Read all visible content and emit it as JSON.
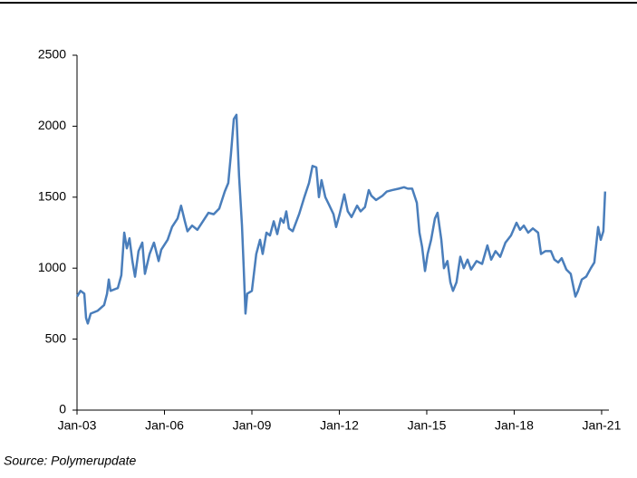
{
  "chart_data": {
    "type": "line",
    "source": "Source: Polymerupdate",
    "series": [
      {
        "name": null,
        "color": "#4a7ebb",
        "x": [
          2003.0,
          2003.12,
          2003.25,
          2003.31,
          2003.37,
          2003.47,
          2003.71,
          2003.93,
          2004.03,
          2004.09,
          2004.15,
          2004.4,
          2004.52,
          2004.62,
          2004.71,
          2004.8,
          2004.9,
          2004.99,
          2005.11,
          2005.24,
          2005.33,
          2005.49,
          2005.64,
          2005.8,
          2005.89,
          2006.11,
          2006.26,
          2006.45,
          2006.57,
          2006.7,
          2006.79,
          2006.95,
          2007.13,
          2007.32,
          2007.51,
          2007.69,
          2007.88,
          2008.07,
          2008.19,
          2008.28,
          2008.38,
          2008.47,
          2008.56,
          2008.66,
          2008.72,
          2008.78,
          2008.84,
          2009.0,
          2009.15,
          2009.28,
          2009.37,
          2009.5,
          2009.62,
          2009.75,
          2009.87,
          2009.99,
          2010.09,
          2010.18,
          2010.27,
          2010.4,
          2010.62,
          2010.8,
          2010.96,
          2011.08,
          2011.21,
          2011.3,
          2011.39,
          2011.52,
          2011.64,
          2011.8,
          2011.89,
          2012.01,
          2012.17,
          2012.29,
          2012.42,
          2012.61,
          2012.73,
          2012.88,
          2013.01,
          2013.1,
          2013.26,
          2013.48,
          2013.63,
          2013.82,
          2014.04,
          2014.22,
          2014.35,
          2014.5,
          2014.66,
          2014.75,
          2014.84,
          2014.94,
          2015.03,
          2015.15,
          2015.28,
          2015.37,
          2015.5,
          2015.59,
          2015.71,
          2015.81,
          2015.9,
          2016.02,
          2016.15,
          2016.27,
          2016.4,
          2016.52,
          2016.71,
          2016.9,
          2017.08,
          2017.21,
          2017.36,
          2017.52,
          2017.7,
          2017.89,
          2018.08,
          2018.2,
          2018.33,
          2018.48,
          2018.64,
          2018.82,
          2018.92,
          2019.07,
          2019.26,
          2019.38,
          2019.51,
          2019.63,
          2019.79,
          2019.94,
          2020.1,
          2020.19,
          2020.32,
          2020.47,
          2020.63,
          2020.75,
          2020.88,
          2020.97,
          2021.06,
          2021.12
        ],
        "values": [
          800,
          840,
          820,
          650,
          610,
          680,
          700,
          740,
          820,
          920,
          840,
          860,
          950,
          1250,
          1140,
          1210,
          1050,
          940,
          1120,
          1180,
          960,
          1100,
          1180,
          1050,
          1130,
          1200,
          1290,
          1350,
          1440,
          1330,
          1260,
          1300,
          1270,
          1330,
          1390,
          1380,
          1420,
          1540,
          1600,
          1800,
          2050,
          2080,
          1650,
          1300,
          1000,
          680,
          820,
          840,
          1100,
          1200,
          1100,
          1250,
          1230,
          1330,
          1240,
          1350,
          1320,
          1400,
          1280,
          1260,
          1380,
          1500,
          1600,
          1720,
          1710,
          1500,
          1620,
          1500,
          1450,
          1380,
          1290,
          1380,
          1520,
          1400,
          1360,
          1440,
          1400,
          1430,
          1550,
          1510,
          1480,
          1510,
          1540,
          1550,
          1560,
          1570,
          1560,
          1560,
          1460,
          1250,
          1150,
          980,
          1100,
          1200,
          1350,
          1390,
          1200,
          1000,
          1050,
          900,
          840,
          900,
          1080,
          1000,
          1060,
          990,
          1050,
          1030,
          1160,
          1060,
          1120,
          1080,
          1180,
          1230,
          1320,
          1270,
          1300,
          1250,
          1280,
          1250,
          1100,
          1120,
          1120,
          1060,
          1040,
          1070,
          990,
          960,
          800,
          840,
          920,
          940,
          1000,
          1040,
          1290,
          1200,
          1260,
          1540
        ]
      }
    ],
    "xlim": [
      2003,
      2021.25
    ],
    "xticks": [
      {
        "value": 2003,
        "label": "Jan-03"
      },
      {
        "value": 2006,
        "label": "Jan-06"
      },
      {
        "value": 2009,
        "label": "Jan-09"
      },
      {
        "value": 2012,
        "label": "Jan-12"
      },
      {
        "value": 2015,
        "label": "Jan-15"
      },
      {
        "value": 2018,
        "label": "Jan-18"
      },
      {
        "value": 2021,
        "label": "Jan-21"
      }
    ],
    "ylim": [
      0,
      2500
    ],
    "yticks": [
      0,
      500,
      1000,
      1500,
      2000,
      2500
    ],
    "grid": false
  }
}
